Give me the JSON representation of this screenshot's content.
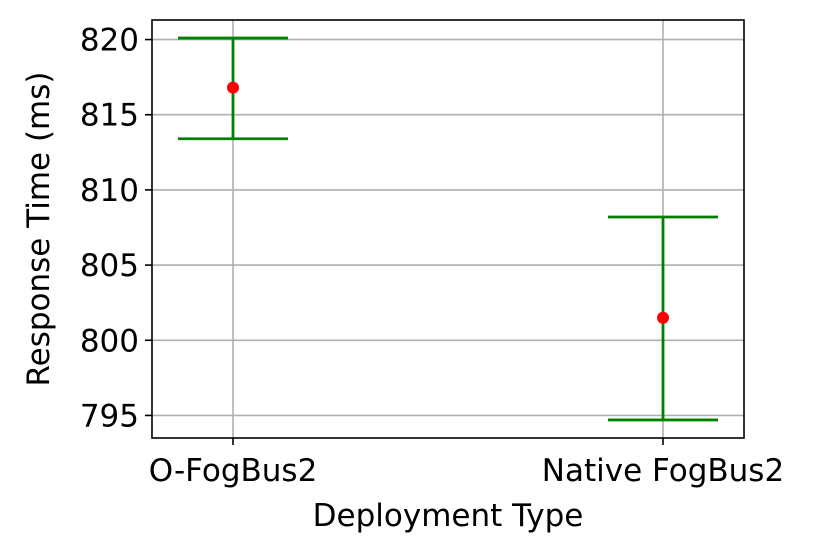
{
  "chart_data": {
    "type": "scatter",
    "title": "",
    "xlabel": "Deployment Type",
    "ylabel": "Response Time (ms)",
    "categories": [
      "O-FogBus2",
      "Native FogBus2"
    ],
    "values": [
      816.8,
      801.5
    ],
    "errors": [
      {
        "low": 813.4,
        "high": 820.1
      },
      {
        "low": 794.7,
        "high": 808.2
      }
    ],
    "ylim": [
      793.5,
      821.3
    ],
    "yticks": [
      795,
      800,
      805,
      810,
      815,
      820
    ],
    "ytick_labels": [
      "795",
      "800",
      "805",
      "810",
      "815",
      "820"
    ],
    "grid": true,
    "legend": "none",
    "colors": {
      "point": "#ff0000",
      "errorbar": "#008000",
      "grid": "#b0b0b0",
      "axis": "#000000"
    }
  }
}
